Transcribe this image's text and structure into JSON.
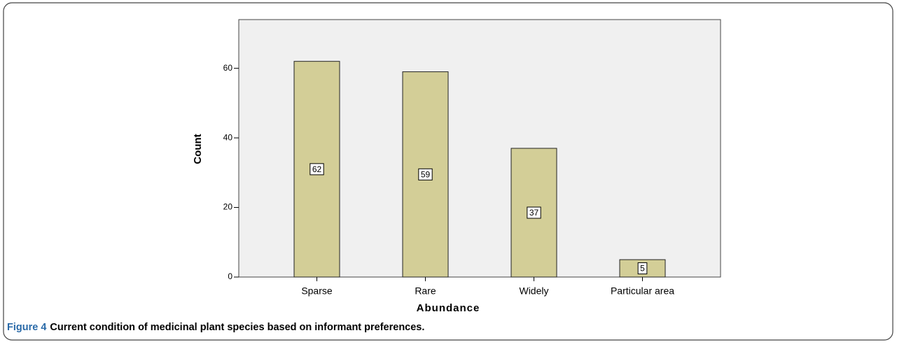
{
  "chart_data": {
    "type": "bar",
    "figure_label": "Figure 4",
    "caption": "Current condition of medicinal plant species based on informant preferences.",
    "x_label": "Abundance",
    "y_label": "Count",
    "categories": [
      "Sparse",
      "Rare",
      "Widely",
      "Particular area"
    ],
    "values": [
      62,
      59,
      37,
      5
    ],
    "color": "#d3ce97",
    "ylim": [
      0,
      74
    ],
    "yticks": [
      0,
      20,
      40,
      60
    ],
    "grid": false
  }
}
